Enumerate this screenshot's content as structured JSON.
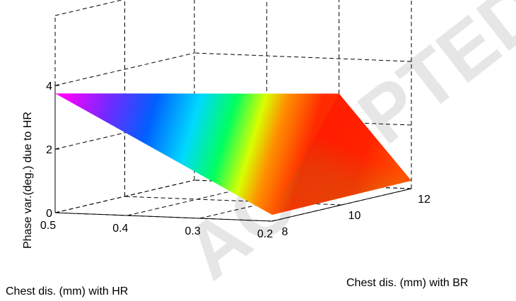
{
  "chart_data": {
    "type": "surface",
    "title": "",
    "xlabel": "Chest dis. (mm) with HR",
    "ylabel": "Chest dis. (mm) with BR",
    "zlabel": "Phase var.(deg.) due to HR",
    "xlim": [
      0.2,
      0.5
    ],
    "ylim": [
      8,
      12
    ],
    "zlim": [
      0,
      4
    ],
    "x_ticks": [
      "0.5",
      "0.4",
      "0.3",
      "0.2"
    ],
    "y_ticks": [
      "8",
      "10",
      "12"
    ],
    "z_ticks": [
      "0",
      "2",
      "4"
    ],
    "grid": true,
    "box": true,
    "colormap": "hsv",
    "surface_corners": [
      {
        "x": 0.5,
        "y": 8,
        "z": 3.75
      },
      {
        "x": 0.2,
        "y": 8,
        "z": 0.2
      },
      {
        "x": 0.2,
        "y": 12,
        "z": 0.25
      },
      {
        "x": 0.3,
        "y": 12,
        "z": 2.9
      }
    ]
  },
  "watermark": "ACCEPTED MANUSCRIPT"
}
